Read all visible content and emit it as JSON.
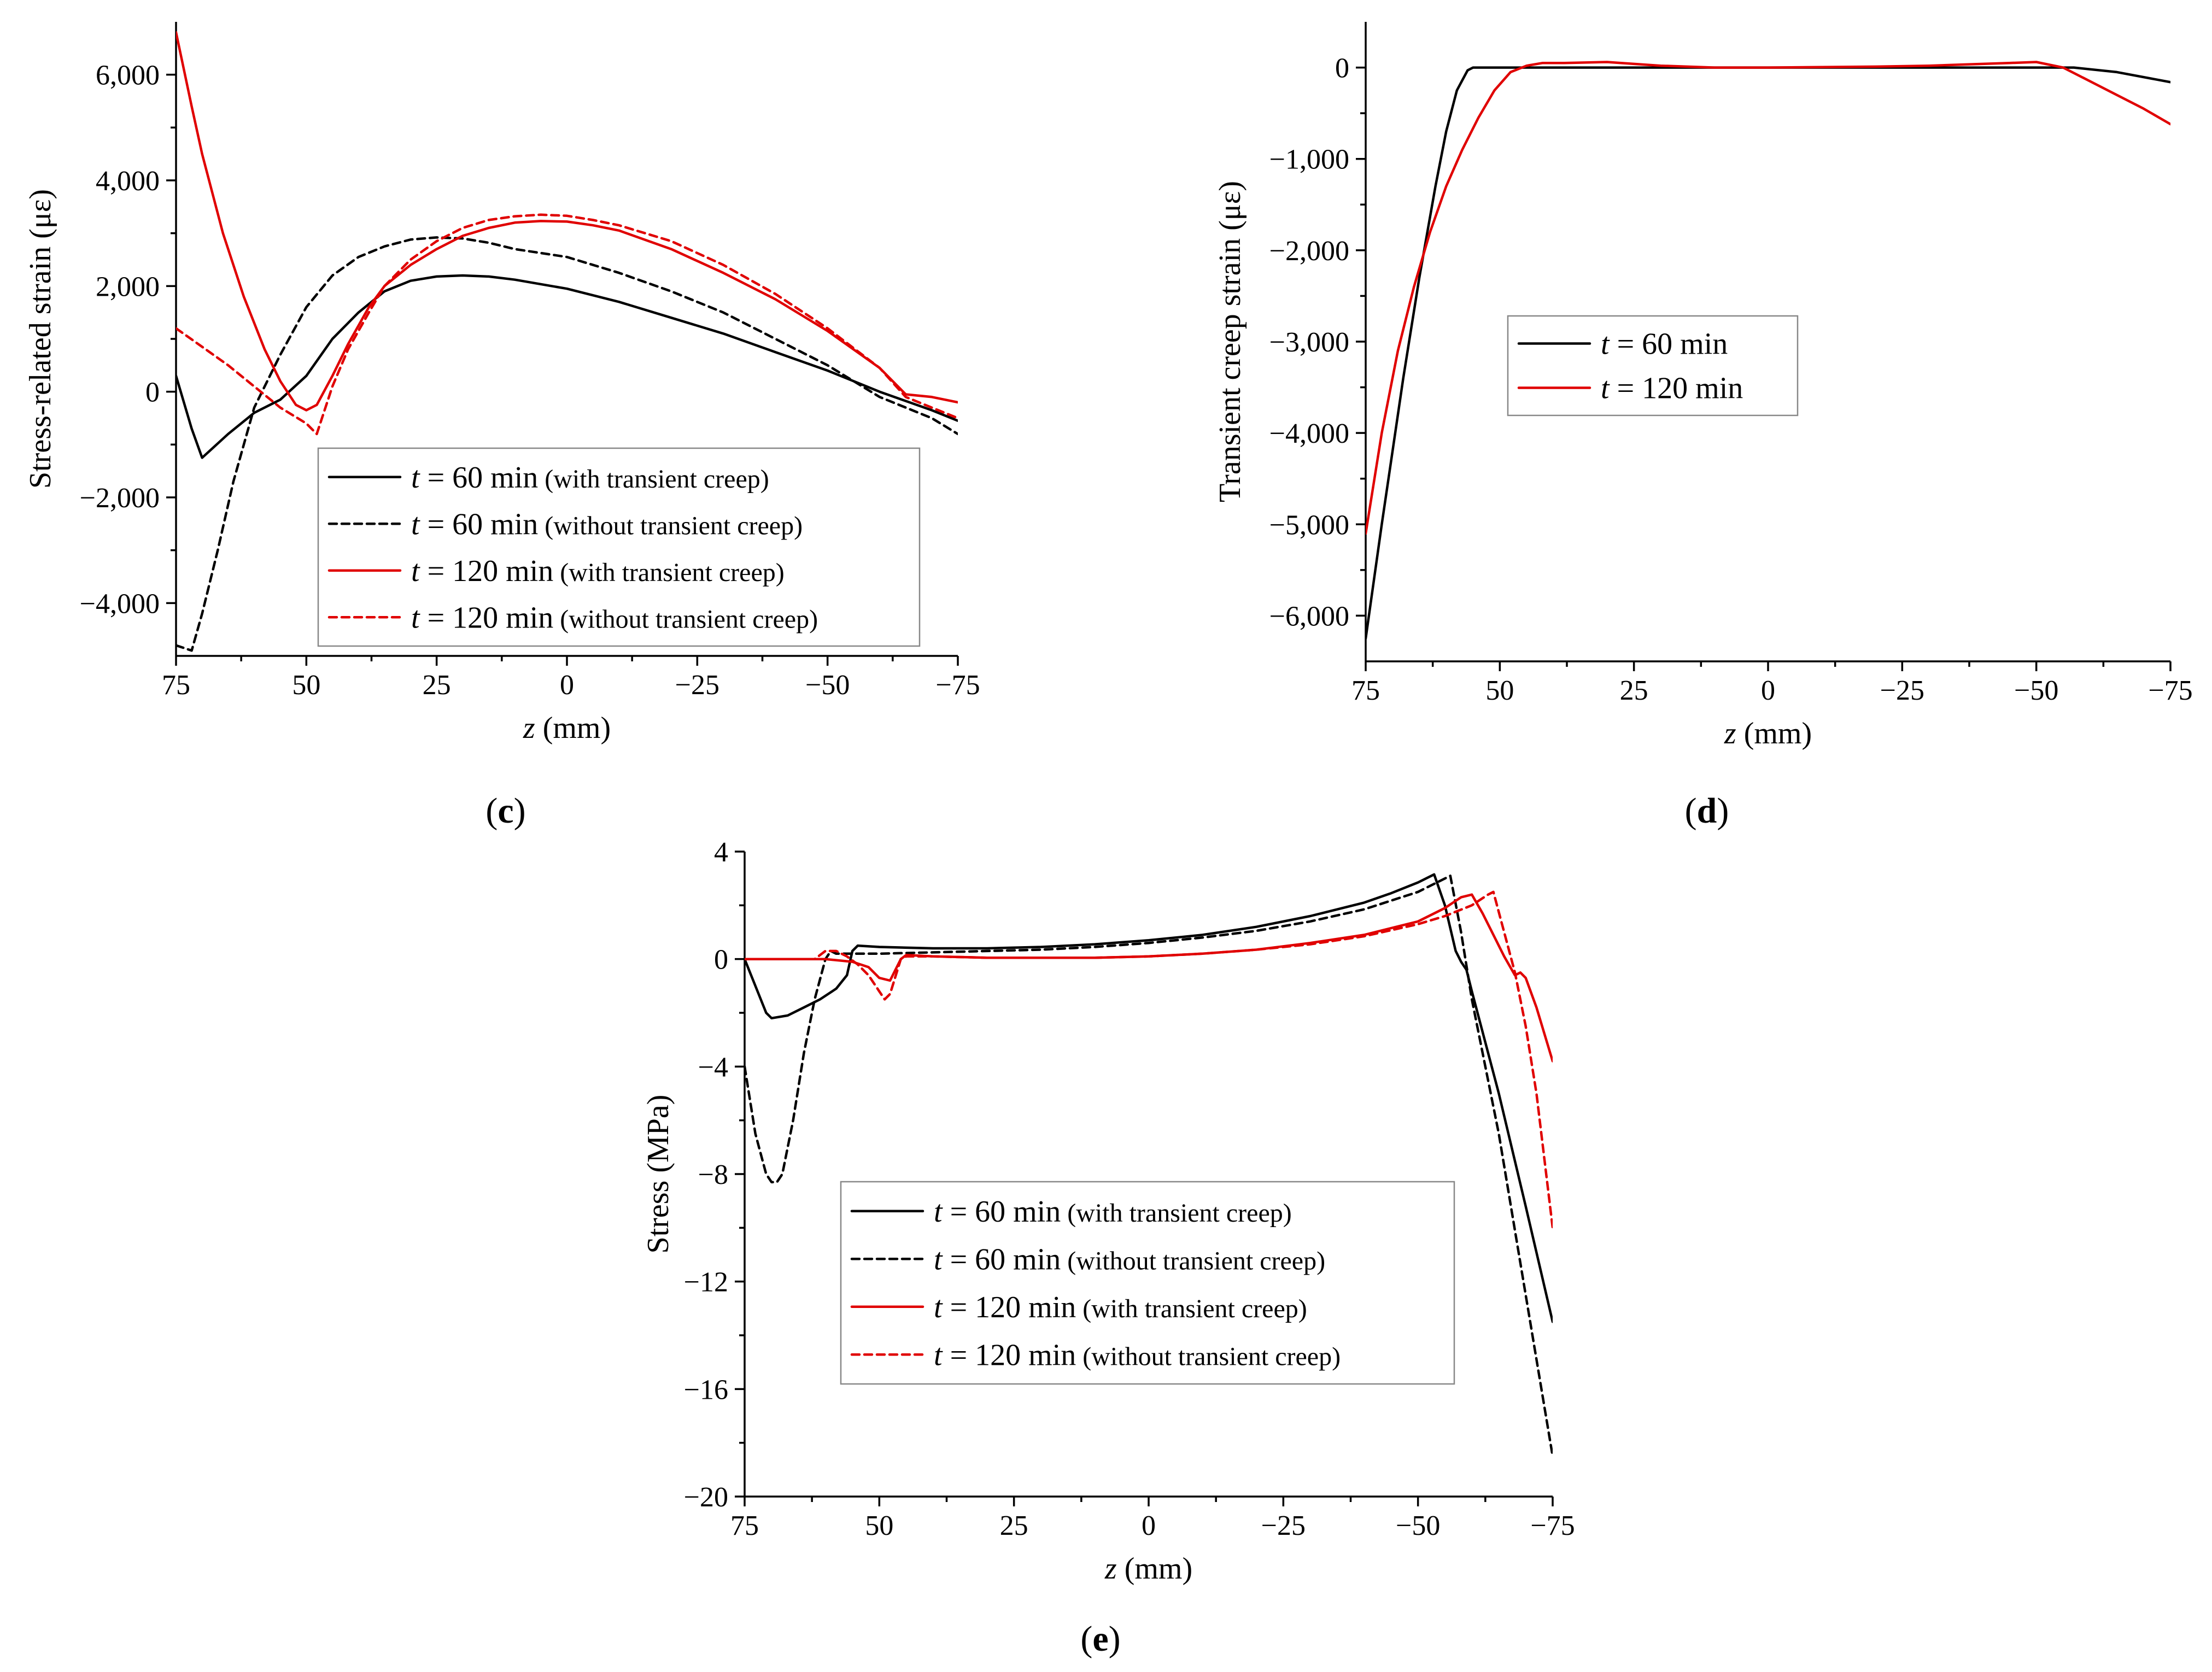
{
  "chart_data": [
    {
      "id": "c",
      "panel_label": "c",
      "type": "line",
      "xlabel": "z",
      "xlabel_unit": " (mm)",
      "ylabel": "Stress-related strain  (με)",
      "xlim": [
        75,
        -75
      ],
      "ylim": [
        -5000,
        7000
      ],
      "xticks": [
        75,
        50,
        25,
        0,
        -25,
        -50,
        -75
      ],
      "xtick_labels": [
        "75",
        "50",
        "25",
        "0",
        "−25",
        "−50",
        "−75"
      ],
      "yticks": [
        -4000,
        -2000,
        0,
        2000,
        4000,
        6000
      ],
      "ytick_labels": [
        "−4,000",
        "−2,000",
        "0",
        "2,000",
        "4,000",
        "6,000"
      ],
      "legend": "lower-right",
      "series": [
        {
          "t": "t",
          "name": " = 60 min",
          "note": " (with transient creep)",
          "color": "#000000",
          "style": "solid",
          "x": [
            75,
            72,
            70,
            65,
            60,
            55,
            50,
            45,
            40,
            35,
            30,
            25,
            20,
            15,
            10,
            0,
            -10,
            -20,
            -30,
            -40,
            -50,
            -60,
            -70,
            -75
          ],
          "y": [
            300,
            -700,
            -1250,
            -800,
            -400,
            -150,
            300,
            1000,
            1500,
            1900,
            2100,
            2180,
            2200,
            2180,
            2120,
            1950,
            1700,
            1400,
            1100,
            750,
            400,
            0,
            -350,
            -550
          ]
        },
        {
          "t": "t",
          "name": " = 60 min",
          "note": " (without transient creep)",
          "color": "#000000",
          "style": "dashed",
          "x": [
            75,
            72,
            70,
            67,
            64,
            60,
            55,
            50,
            45,
            40,
            35,
            30,
            25,
            20,
            15,
            10,
            0,
            -10,
            -20,
            -30,
            -40,
            -50,
            -60,
            -70,
            -75
          ],
          "y": [
            -4800,
            -4900,
            -4200,
            -3000,
            -1700,
            -300,
            700,
            1600,
            2200,
            2550,
            2750,
            2880,
            2920,
            2900,
            2820,
            2700,
            2550,
            2250,
            1900,
            1500,
            1000,
            500,
            -100,
            -500,
            -800
          ]
        },
        {
          "t": "t",
          "name": " = 120 min",
          "note": " (with transient creep)",
          "color": "#e00000",
          "style": "solid",
          "x": [
            75,
            72,
            70,
            66,
            62,
            58,
            55,
            52,
            50,
            48,
            45,
            42,
            38,
            35,
            30,
            25,
            20,
            15,
            10,
            5,
            0,
            -5,
            -10,
            -20,
            -30,
            -40,
            -50,
            -60,
            -65,
            -70,
            -75
          ],
          "y": [
            6800,
            5400,
            4500,
            3000,
            1800,
            800,
            200,
            -250,
            -350,
            -250,
            300,
            900,
            1600,
            2000,
            2400,
            2700,
            2950,
            3100,
            3200,
            3230,
            3220,
            3150,
            3050,
            2700,
            2250,
            1750,
            1150,
            450,
            -50,
            -100,
            -200
          ]
        },
        {
          "t": "t",
          "name": " = 120 min",
          "note": " (without transient creep)",
          "color": "#e00000",
          "style": "dashed",
          "x": [
            75,
            70,
            65,
            60,
            55,
            50,
            48,
            45,
            42,
            38,
            35,
            30,
            25,
            20,
            15,
            10,
            5,
            0,
            -5,
            -10,
            -20,
            -30,
            -40,
            -50,
            -60,
            -65,
            -70,
            -75
          ],
          "y": [
            1200,
            850,
            500,
            100,
            -300,
            -600,
            -800,
            100,
            800,
            1500,
            2000,
            2500,
            2850,
            3100,
            3250,
            3320,
            3350,
            3330,
            3250,
            3150,
            2850,
            2400,
            1850,
            1200,
            450,
            -100,
            -300,
            -500
          ]
        }
      ]
    },
    {
      "id": "d",
      "panel_label": "d",
      "type": "line",
      "xlabel": "z",
      "xlabel_unit": " (mm)",
      "ylabel": "Transient creep strain  (με)",
      "xlim": [
        75,
        -75
      ],
      "ylim": [
        -6500,
        500
      ],
      "xticks": [
        75,
        50,
        25,
        0,
        -25,
        -50,
        -75
      ],
      "xtick_labels": [
        "75",
        "50",
        "25",
        "0",
        "−25",
        "−50",
        "−75"
      ],
      "yticks": [
        -6000,
        -5000,
        -4000,
        -3000,
        -2000,
        -1000,
        0
      ],
      "ytick_labels": [
        "−6,000",
        "−5,000",
        "−4,000",
        "−3,000",
        "−2,000",
        "−1,000",
        "0"
      ],
      "legend": "center-left",
      "series": [
        {
          "t": "t",
          "name": " = 60 min",
          "note": "",
          "color": "#000000",
          "style": "solid",
          "x": [
            75,
            72,
            70,
            68,
            65,
            62,
            60,
            58,
            56,
            55,
            53,
            50,
            25,
            0,
            -25,
            -50,
            -57,
            -65,
            -75
          ],
          "y": [
            -6250,
            -5000,
            -4200,
            -3400,
            -2300,
            -1300,
            -700,
            -250,
            -30,
            0,
            0,
            0,
            0,
            0,
            0,
            0,
            0,
            -50,
            -160
          ]
        },
        {
          "t": "t",
          "name": " = 120 min",
          "note": "",
          "color": "#e00000",
          "style": "solid",
          "x": [
            75,
            72,
            69,
            66,
            63,
            60,
            57,
            54,
            51,
            48,
            45,
            42,
            38,
            30,
            20,
            10,
            0,
            -10,
            -20,
            -30,
            -40,
            -45,
            -50,
            -55,
            -60,
            -65,
            -70,
            -75
          ],
          "y": [
            -5100,
            -4000,
            -3100,
            -2400,
            -1800,
            -1300,
            -900,
            -550,
            -250,
            -50,
            20,
            50,
            50,
            60,
            20,
            0,
            0,
            5,
            10,
            20,
            40,
            50,
            60,
            0,
            -150,
            -300,
            -450,
            -620
          ]
        }
      ]
    },
    {
      "id": "e",
      "panel_label": "e",
      "type": "line",
      "xlabel": "z",
      "xlabel_unit": " (mm)",
      "ylabel": "Stress (MPa)",
      "xlim": [
        75,
        -75
      ],
      "ylim": [
        -20,
        4
      ],
      "xticks": [
        75,
        50,
        25,
        0,
        -25,
        -50,
        -75
      ],
      "xtick_labels": [
        "75",
        "50",
        "25",
        "0",
        "−25",
        "−50",
        "−75"
      ],
      "yticks": [
        -20,
        -16,
        -12,
        -8,
        -4,
        0,
        4
      ],
      "ytick_labels": [
        "−20",
        "−16",
        "−12",
        "−8",
        "−4",
        "0",
        "4"
      ],
      "legend": "lower-center",
      "series": [
        {
          "t": "t",
          "name": " = 60 min",
          "note": " (with transient creep)",
          "color": "#000000",
          "style": "solid",
          "x": [
            75,
            73,
            71,
            70,
            67,
            64,
            61,
            58,
            56,
            55,
            54,
            50,
            40,
            30,
            20,
            10,
            0,
            -10,
            -20,
            -30,
            -40,
            -45,
            -50,
            -53,
            -55,
            -57,
            -58,
            -59,
            -60,
            -65,
            -70,
            -75
          ],
          "y": [
            0,
            -1.0,
            -2.0,
            -2.2,
            -2.1,
            -1.8,
            -1.5,
            -1.1,
            -0.6,
            0.3,
            0.5,
            0.45,
            0.4,
            0.4,
            0.45,
            0.55,
            0.7,
            0.9,
            1.2,
            1.6,
            2.1,
            2.45,
            2.85,
            3.15,
            2.0,
            0.3,
            -0.1,
            -0.4,
            -1.2,
            -5.0,
            -9.2,
            -13.5
          ]
        },
        {
          "t": "t",
          "name": " = 60 min",
          "note": " (without transient creep)",
          "color": "#000000",
          "style": "dashed",
          "x": [
            75,
            73,
            71,
            70,
            69,
            68,
            66,
            64,
            62,
            60,
            59,
            58,
            56,
            50,
            40,
            30,
            20,
            10,
            0,
            -10,
            -20,
            -30,
            -40,
            -50,
            -55,
            -56,
            -58,
            -60,
            -65,
            -70,
            -75
          ],
          "y": [
            -4,
            -6.5,
            -8.0,
            -8.3,
            -8.3,
            -8.0,
            -6.0,
            -3.5,
            -1.5,
            0,
            0.3,
            0.2,
            0.2,
            0.2,
            0.25,
            0.3,
            0.35,
            0.45,
            0.6,
            0.8,
            1.05,
            1.4,
            1.85,
            2.5,
            3.0,
            3.1,
            1.0,
            -1.5,
            -6.5,
            -12.5,
            -18.5
          ]
        },
        {
          "t": "t",
          "name": " = 120 min",
          "note": " (with transient creep)",
          "color": "#e00000",
          "style": "solid",
          "x": [
            75,
            60,
            55,
            52,
            50,
            48,
            46,
            45,
            40,
            30,
            20,
            10,
            0,
            -10,
            -20,
            -30,
            -40,
            -50,
            -55,
            -58,
            -60,
            -62,
            -64,
            -66,
            -68,
            -69,
            -70,
            -72,
            -75
          ],
          "y": [
            0,
            0,
            -0.1,
            -0.3,
            -0.7,
            -0.8,
            0,
            0.15,
            0.1,
            0.05,
            0.05,
            0.05,
            0.1,
            0.2,
            0.35,
            0.6,
            0.9,
            1.4,
            1.9,
            2.3,
            2.4,
            1.7,
            0.9,
            0.1,
            -0.6,
            -0.5,
            -0.7,
            -1.8,
            -3.8
          ]
        },
        {
          "t": "t",
          "name": " = 120 min",
          "note": " (without transient creep)",
          "color": "#e00000",
          "style": "dashed",
          "x": [
            75,
            62,
            60,
            58,
            56,
            54,
            52,
            50,
            49,
            48,
            46,
            45,
            40,
            30,
            20,
            10,
            0,
            -10,
            -20,
            -30,
            -40,
            -50,
            -55,
            -60,
            -63,
            -64,
            -66,
            -68,
            -70,
            -72,
            -75
          ],
          "y": [
            0,
            0,
            0.3,
            0.3,
            0.1,
            -0.2,
            -0.6,
            -1.2,
            -1.5,
            -1.3,
            0,
            0.1,
            0.1,
            0.05,
            0.05,
            0.05,
            0.1,
            0.2,
            0.35,
            0.55,
            0.85,
            1.3,
            1.6,
            2.0,
            2.4,
            2.5,
            1.0,
            -0.5,
            -2.5,
            -5.0,
            -10.0
          ]
        }
      ]
    }
  ]
}
